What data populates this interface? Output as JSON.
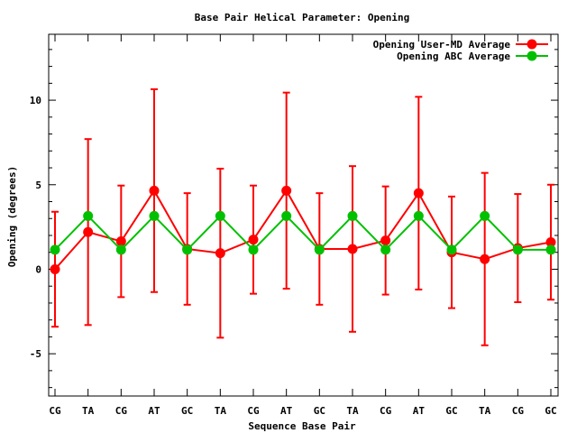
{
  "chart_data": {
    "type": "line",
    "title": "Base Pair Helical Parameter: Opening",
    "xlabel": "Sequence Base Pair",
    "ylabel": "Opening (degrees)",
    "categories": [
      "CG",
      "TA",
      "CG",
      "AT",
      "GC",
      "TA",
      "CG",
      "AT",
      "GC",
      "TA",
      "CG",
      "AT",
      "GC",
      "TA",
      "CG",
      "GC"
    ],
    "ylim": [
      -7.5,
      13.9
    ],
    "yticks": [
      -5,
      0,
      5,
      10
    ],
    "ytick_labels": [
      "-5",
      "0",
      "5",
      "10"
    ],
    "grid": false,
    "legend_position": "top-right",
    "series": [
      {
        "name": "Opening User-MD Average",
        "color": "#ff0000",
        "values": [
          0.0,
          2.2,
          1.65,
          4.65,
          1.2,
          0.95,
          1.75,
          4.65,
          1.2,
          1.2,
          1.7,
          4.5,
          1.0,
          0.6,
          1.25,
          1.6
        ],
        "error": [
          3.4,
          5.5,
          3.3,
          6.0,
          3.3,
          5.0,
          3.2,
          5.8,
          3.3,
          4.9,
          3.2,
          5.7,
          3.3,
          5.1,
          3.2,
          3.4
        ]
      },
      {
        "name": "Opening ABC Average",
        "color": "#00c000",
        "values": [
          1.15,
          3.15,
          1.15,
          3.15,
          1.15,
          3.15,
          1.15,
          3.15,
          1.15,
          3.15,
          1.15,
          3.15,
          1.15,
          3.15,
          1.15,
          1.15
        ]
      }
    ]
  }
}
